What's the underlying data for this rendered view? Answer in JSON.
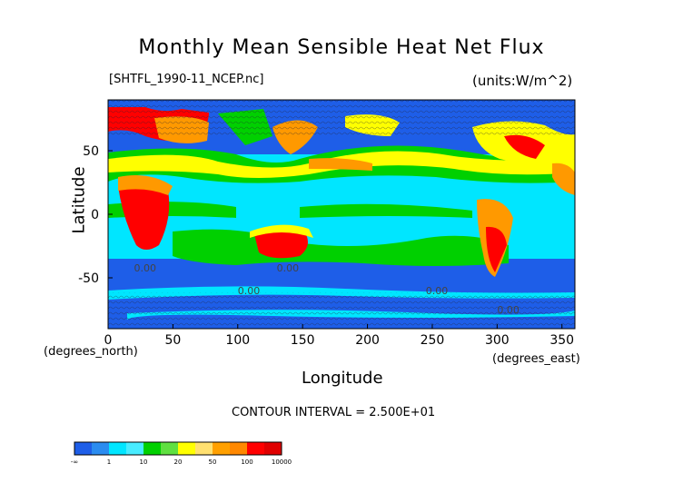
{
  "chart_data": {
    "type": "heatmap",
    "title": "Monthly Mean Sensible Heat Net Flux",
    "file_label": "[SHTFL_1990-11_NCEP.nc]",
    "units_label": "(units:W/m^2)",
    "xlabel": "Longitude",
    "ylabel": "Latitude",
    "xunit": "(degrees_east)",
    "yunit": "(degrees_north)",
    "xlim": [
      0,
      360
    ],
    "ylim": [
      -90,
      90
    ],
    "x_ticks": [
      0,
      50,
      100,
      150,
      200,
      250,
      300,
      350
    ],
    "y_ticks": [
      50,
      0,
      -50
    ],
    "contour_interval_text": "CONTOUR INTERVAL = 2.500E+01",
    "contour_labels": [
      "0.00",
      "0.00",
      "0.00",
      "0.00",
      "0.00"
    ],
    "colorbar": {
      "tick_labels": [
        "-∞",
        "1",
        "10",
        "20",
        "50",
        "100",
        "10000"
      ],
      "colors": [
        "#1e5ee8",
        "#2a8cf0",
        "#00e6ff",
        "#48ecff",
        "#00d000",
        "#5fe040",
        "#ffff00",
        "#ffe070",
        "#ffa000",
        "#ff8800",
        "#ff0000",
        "#e00000"
      ]
    }
  }
}
